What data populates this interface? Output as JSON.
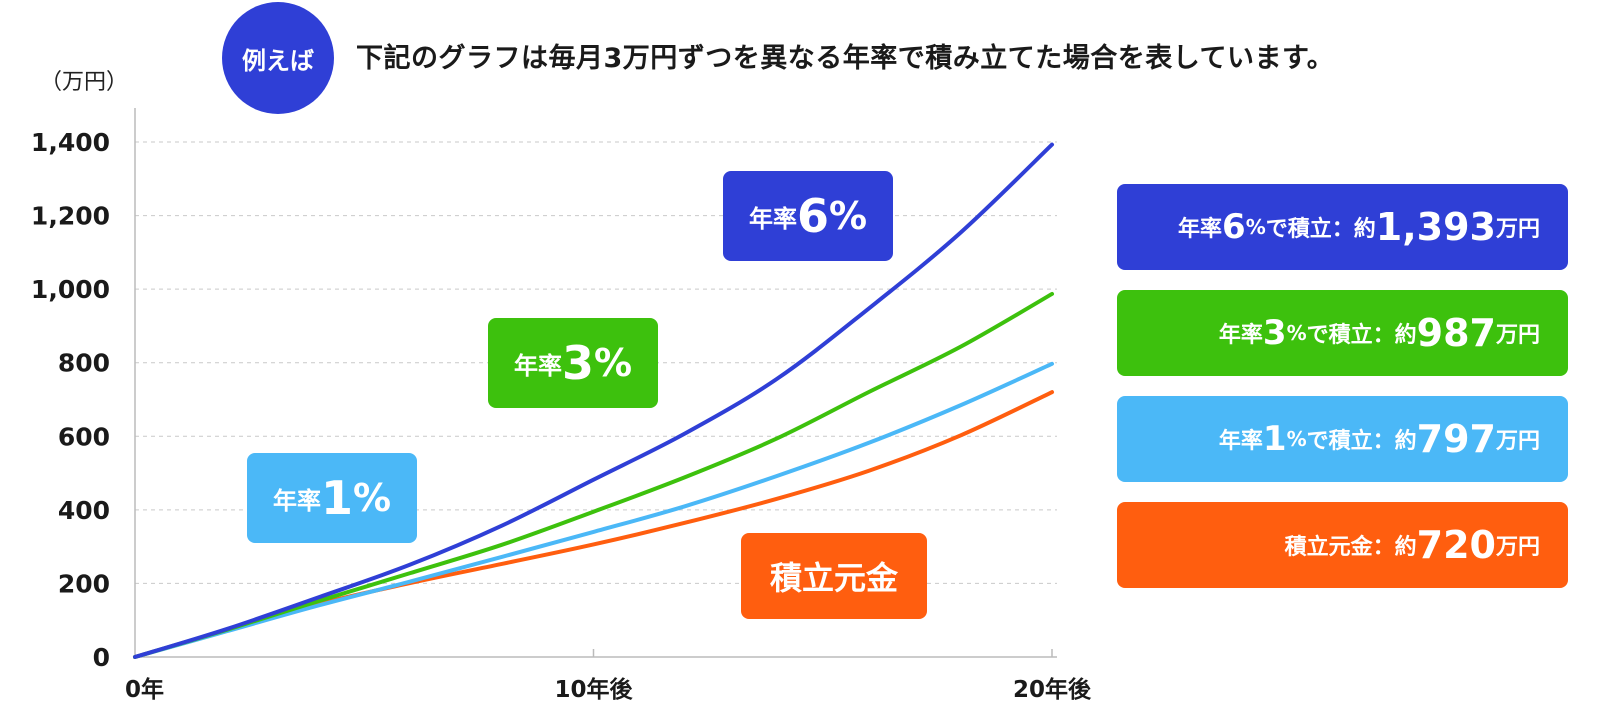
{
  "header": {
    "badge": "例えば",
    "headline": "下記のグラフは毎月3万円ずつを異なる年率で積み立てた場合を表しています。"
  },
  "chart_data": {
    "type": "line",
    "y_unit_label": "（万円）",
    "ylim": [
      0,
      1400
    ],
    "yticks": [
      "0",
      "200",
      "400",
      "600",
      "800",
      "1,000",
      "1,200",
      "1,400"
    ],
    "ytick_values": [
      0,
      200,
      400,
      600,
      800,
      1000,
      1200,
      1400
    ],
    "xlim": [
      0,
      20
    ],
    "xticks": [
      {
        "label": "0年",
        "value": 0
      },
      {
        "label": "10年後",
        "value": 10
      },
      {
        "label": "20年後",
        "value": 20
      }
    ],
    "grid": true,
    "x": [
      0,
      2,
      4,
      6,
      8,
      10,
      12,
      14,
      16,
      18,
      20
    ],
    "series": [
      {
        "name": "年率6%",
        "color": "#2f3fd6",
        "values": [
          0,
          76,
          162,
          251,
          357,
          482,
          608,
          756,
          947,
          1153,
          1393
        ]
      },
      {
        "name": "年率3%",
        "color": "#3dc10d",
        "values": [
          0,
          74,
          152,
          228,
          305,
          395,
          489,
          594,
          720,
          843,
          987
        ]
      },
      {
        "name": "年率1%",
        "color": "#4bb8f7",
        "values": [
          0,
          70,
          140,
          205,
          272,
          340,
          410,
          492,
          582,
          684,
          797
        ]
      },
      {
        "name": "積立元金",
        "color": "#ff5e0f",
        "values": [
          0,
          72,
          144,
          201,
          253,
          306,
          365,
          430,
          506,
          602,
          720
        ]
      }
    ]
  },
  "tags": [
    {
      "prefix": "年率",
      "num": "6",
      "pct": "%",
      "color": "#2f3fd6"
    },
    {
      "prefix": "年率",
      "num": "3",
      "pct": "%",
      "color": "#3dc10d"
    },
    {
      "prefix": "年率",
      "num": "1",
      "pct": "%",
      "color": "#4bb8f7"
    },
    {
      "label": "積立元金",
      "color": "#ff5e0f"
    }
  ],
  "results": [
    {
      "pre": "年率",
      "num": "6",
      "pct": "%",
      "mid": "で積立：約",
      "amount": "1,393",
      "unit": "万円",
      "color": "#2f3fd6"
    },
    {
      "pre": "年率",
      "num": "3",
      "pct": "%",
      "mid": "で積立：約",
      "amount": "987",
      "unit": "万円",
      "color": "#3dc10d"
    },
    {
      "pre": "年率",
      "num": "1",
      "pct": "%",
      "mid": "で積立：約",
      "amount": "797",
      "unit": "万円",
      "color": "#4bb8f7"
    },
    {
      "pre": "",
      "num": "",
      "pct": "",
      "mid": "積立元金：約",
      "amount": "720",
      "unit": "万円",
      "color": "#ff5e0f"
    }
  ]
}
